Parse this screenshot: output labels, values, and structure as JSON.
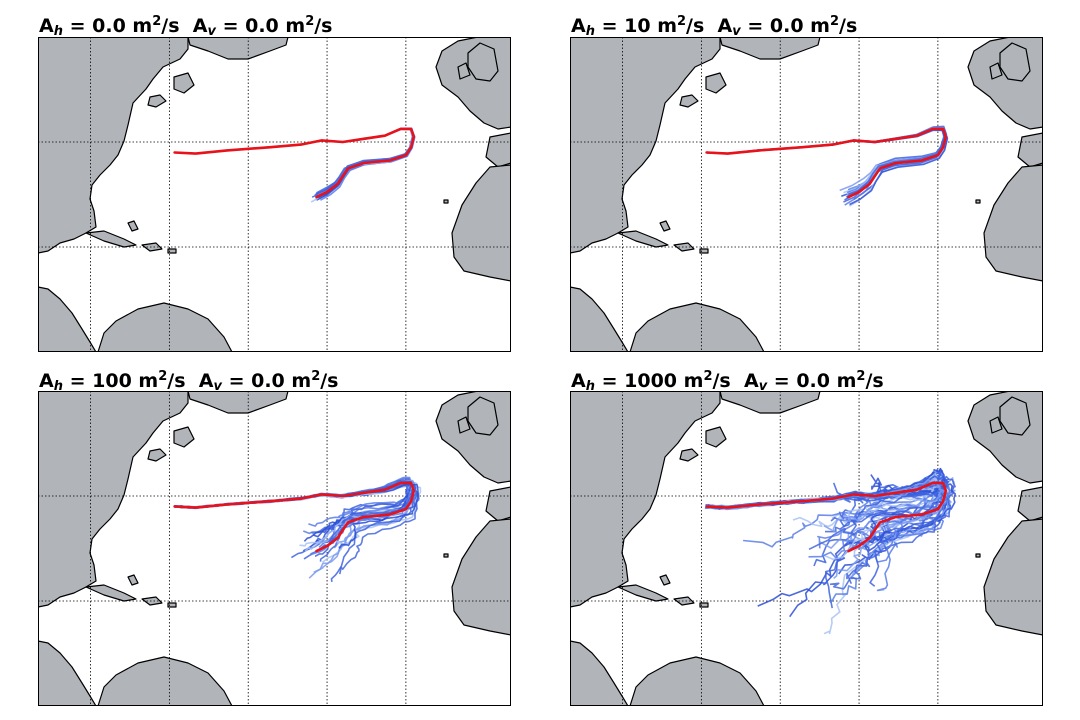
{
  "panels": [
    {
      "id": "panel-1",
      "title": {
        "ah_label": "A",
        "ah_sub": "h",
        "ah_value": " = 0.0 m",
        "ah_sup": "2",
        "ah_unit": "/s",
        "av_label": "A",
        "av_sub": "v",
        "av_value": " = 0.0 m",
        "av_sup": "2",
        "av_unit": "/s"
      },
      "spread": 0.3,
      "n_traj": 14
    },
    {
      "id": "panel-2",
      "title": {
        "ah_label": "A",
        "ah_sub": "h",
        "ah_value": " = 10 m",
        "ah_sup": "2",
        "ah_unit": "/s",
        "av_label": "A",
        "av_sub": "v",
        "av_value": " = 0.0 m",
        "av_sup": "2",
        "av_unit": "/s"
      },
      "spread": 0.6,
      "n_traj": 18
    },
    {
      "id": "panel-3",
      "title": {
        "ah_label": "A",
        "ah_sub": "h",
        "ah_value": " = 100 m",
        "ah_sup": "2",
        "ah_unit": "/s",
        "av_label": "A",
        "av_sub": "v",
        "av_value": " = 0.0 m",
        "av_sup": "2",
        "av_unit": "/s"
      },
      "spread": 1.4,
      "n_traj": 26
    },
    {
      "id": "panel-4",
      "title": {
        "ah_label": "A",
        "ah_sub": "h",
        "ah_value": " = 1000 m",
        "ah_sup": "2",
        "ah_unit": "/s",
        "av_label": "A",
        "av_sub": "v",
        "av_value": " = 0.0 m",
        "av_sup": "2",
        "av_unit": "/s"
      },
      "spread": 3.2,
      "n_traj": 40
    }
  ],
  "colors": {
    "land": "#b1b5ba",
    "coast": "#000000",
    "mean_track": "#e8121b",
    "trajectories": [
      "#2b4fd6",
      "#3d63e0",
      "#5a7ee8",
      "#7c9bee",
      "#a9c2f5",
      "#4466dd"
    ],
    "grid": "#000000"
  },
  "mean_track_lonlat": [
    [
      -74,
      38
    ],
    [
      -70,
      37.8
    ],
    [
      -64,
      38.4
    ],
    [
      -56,
      39
    ],
    [
      -50,
      39.5
    ],
    [
      -46,
      40.3
    ],
    [
      -42,
      40
    ],
    [
      -38,
      40.6
    ],
    [
      -34,
      41.2
    ],
    [
      -31,
      42.5
    ],
    [
      -29,
      42.5
    ],
    [
      -28.5,
      41
    ],
    [
      -29,
      39
    ],
    [
      -30,
      37.5
    ],
    [
      -33,
      36.5
    ],
    [
      -38,
      36
    ],
    [
      -41,
      35
    ],
    [
      -42,
      33.5
    ],
    [
      -43,
      32
    ],
    [
      -45,
      30.5
    ],
    [
      -47,
      29.5
    ]
  ]
}
